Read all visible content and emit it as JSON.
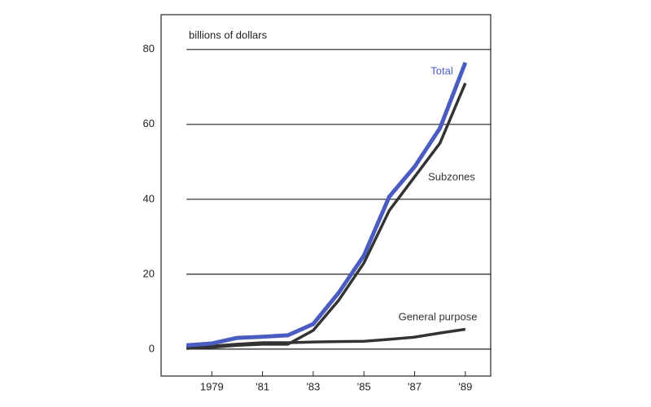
{
  "chart_data": {
    "type": "line",
    "y_label": "billions of dollars",
    "x": [
      1978,
      1979,
      1980,
      1981,
      1982,
      1983,
      1984,
      1985,
      1986,
      1987,
      1988,
      1989
    ],
    "series": [
      {
        "name": "Total",
        "color": "#4a5cc0",
        "values": [
          1,
          1.5,
          3,
          3.3,
          3.7,
          6.7,
          15,
          25,
          40.7,
          48.7,
          59,
          76.5
        ]
      },
      {
        "name": "Subzones",
        "color": "#333333",
        "values": [
          0.2,
          0.5,
          1,
          1.3,
          1.3,
          5,
          13,
          23,
          37,
          46,
          55,
          71
        ]
      },
      {
        "name": "General purpose",
        "color": "#333333",
        "values": [
          0.5,
          0.8,
          1.3,
          1.7,
          1.7,
          1.9,
          2,
          2.1,
          2.6,
          3.2,
          4.3,
          5.3
        ]
      }
    ],
    "xlim": [
      1977,
      1990
    ],
    "xticks": [
      {
        "value": 1979,
        "label": "1979"
      },
      {
        "value": 1981,
        "label": "'81"
      },
      {
        "value": 1983,
        "label": "'83"
      },
      {
        "value": 1985,
        "label": "'85"
      },
      {
        "value": 1987,
        "label": "'87"
      },
      {
        "value": 1989,
        "label": "'89"
      }
    ],
    "ylim": [
      -7.2,
      89.3
    ],
    "yticks": [
      0,
      20,
      40,
      60,
      80
    ],
    "grid": true
  }
}
